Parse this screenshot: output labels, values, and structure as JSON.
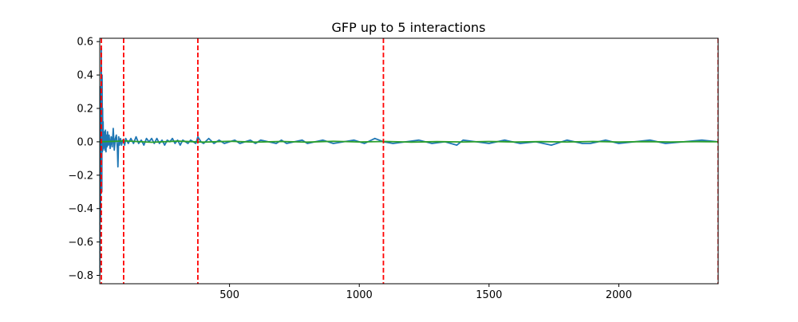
{
  "chart_data": {
    "type": "line",
    "title": "GFP up to 5 interactions",
    "xlabel": "",
    "ylabel": "",
    "xlim": [
      0,
      2383
    ],
    "ylim": [
      -0.85,
      0.62
    ],
    "xticks": [
      500,
      1000,
      1500,
      2000
    ],
    "yticks": [
      -0.8,
      -0.6,
      -0.4,
      -0.2,
      0.0,
      0.2,
      0.4,
      0.6
    ],
    "grid": false,
    "legend": "none",
    "vlines": {
      "x": [
        6,
        92,
        378,
        1093,
        2383
      ],
      "color": "#ff0000",
      "style": "dashed"
    },
    "series": [
      {
        "color": "#1f77b4",
        "x": [
          0,
          1,
          2,
          3,
          4,
          5,
          6,
          7,
          8,
          9,
          10,
          11,
          12,
          13,
          14,
          15,
          16,
          18,
          20,
          22,
          24,
          26,
          28,
          30,
          33,
          36,
          40,
          44,
          48,
          52,
          56,
          60,
          64,
          68,
          70,
          73,
          76,
          80,
          84,
          88,
          92,
          96,
          100,
          110,
          120,
          130,
          140,
          150,
          160,
          170,
          180,
          190,
          200,
          210,
          220,
          230,
          240,
          250,
          260,
          270,
          280,
          290,
          300,
          310,
          320,
          330,
          340,
          350,
          360,
          370,
          378,
          390,
          400,
          420,
          440,
          460,
          480,
          500,
          520,
          540,
          560,
          580,
          600,
          620,
          650,
          680,
          700,
          720,
          750,
          780,
          800,
          830,
          860,
          900,
          940,
          980,
          1020,
          1060,
          1093,
          1130,
          1180,
          1230,
          1280,
          1330,
          1376,
          1400,
          1450,
          1500,
          1560,
          1620,
          1680,
          1740,
          1800,
          1860,
          1890,
          1950,
          2000,
          2060,
          2120,
          2180,
          2250,
          2320,
          2383
        ],
        "y": [
          -0.8,
          0.33,
          0.1,
          -0.45,
          0.25,
          -0.3,
          0.56,
          0.05,
          -0.3,
          0.4,
          -0.06,
          0.2,
          -0.05,
          0.12,
          -0.04,
          0.06,
          0.02,
          0.06,
          -0.05,
          0.07,
          -0.06,
          0.04,
          -0.03,
          0.06,
          -0.02,
          0.04,
          -0.04,
          0.03,
          -0.03,
          0.08,
          -0.05,
          0.02,
          0.04,
          -0.04,
          -0.15,
          0.03,
          -0.02,
          0.02,
          -0.02,
          0.01,
          0.0,
          -0.02,
          0.02,
          -0.01,
          0.02,
          -0.01,
          0.03,
          -0.01,
          0.01,
          -0.02,
          0.02,
          0.0,
          0.02,
          -0.01,
          0.02,
          -0.01,
          0.01,
          -0.02,
          0.01,
          0.0,
          0.02,
          -0.01,
          0.01,
          -0.02,
          0.01,
          0.0,
          -0.01,
          0.01,
          0.0,
          -0.01,
          0.03,
          0.0,
          -0.01,
          0.02,
          -0.01,
          0.01,
          -0.01,
          0.0,
          0.01,
          -0.01,
          0.0,
          0.01,
          -0.01,
          0.01,
          0.0,
          -0.01,
          0.01,
          -0.01,
          0.0,
          0.01,
          -0.01,
          0.0,
          0.01,
          -0.01,
          0.0,
          0.01,
          -0.01,
          0.02,
          0.0,
          -0.01,
          0.0,
          0.01,
          -0.01,
          0.0,
          -0.02,
          0.01,
          0.0,
          -0.01,
          0.01,
          -0.01,
          0.0,
          -0.02,
          0.01,
          -0.01,
          -0.01,
          0.01,
          -0.01,
          0.0,
          0.01,
          -0.01,
          0.0,
          0.01,
          0.0
        ]
      },
      {
        "color": "#2ca02c",
        "x": [
          0,
          100,
          200,
          300,
          400,
          500,
          600,
          700,
          800,
          900,
          1000,
          1100,
          1200,
          1300,
          1400,
          1500,
          1600,
          1700,
          1800,
          1900,
          2000,
          2100,
          2200,
          2300,
          2383
        ],
        "y": [
          0.0,
          0.005,
          -0.003,
          0.004,
          -0.002,
          0.003,
          -0.002,
          0.002,
          -0.002,
          0.003,
          -0.001,
          0.002,
          -0.002,
          0.001,
          -0.001,
          0.002,
          -0.001,
          0.001,
          -0.001,
          0.002,
          -0.001,
          0.001,
          -0.001,
          0.001,
          0.0
        ]
      }
    ]
  }
}
